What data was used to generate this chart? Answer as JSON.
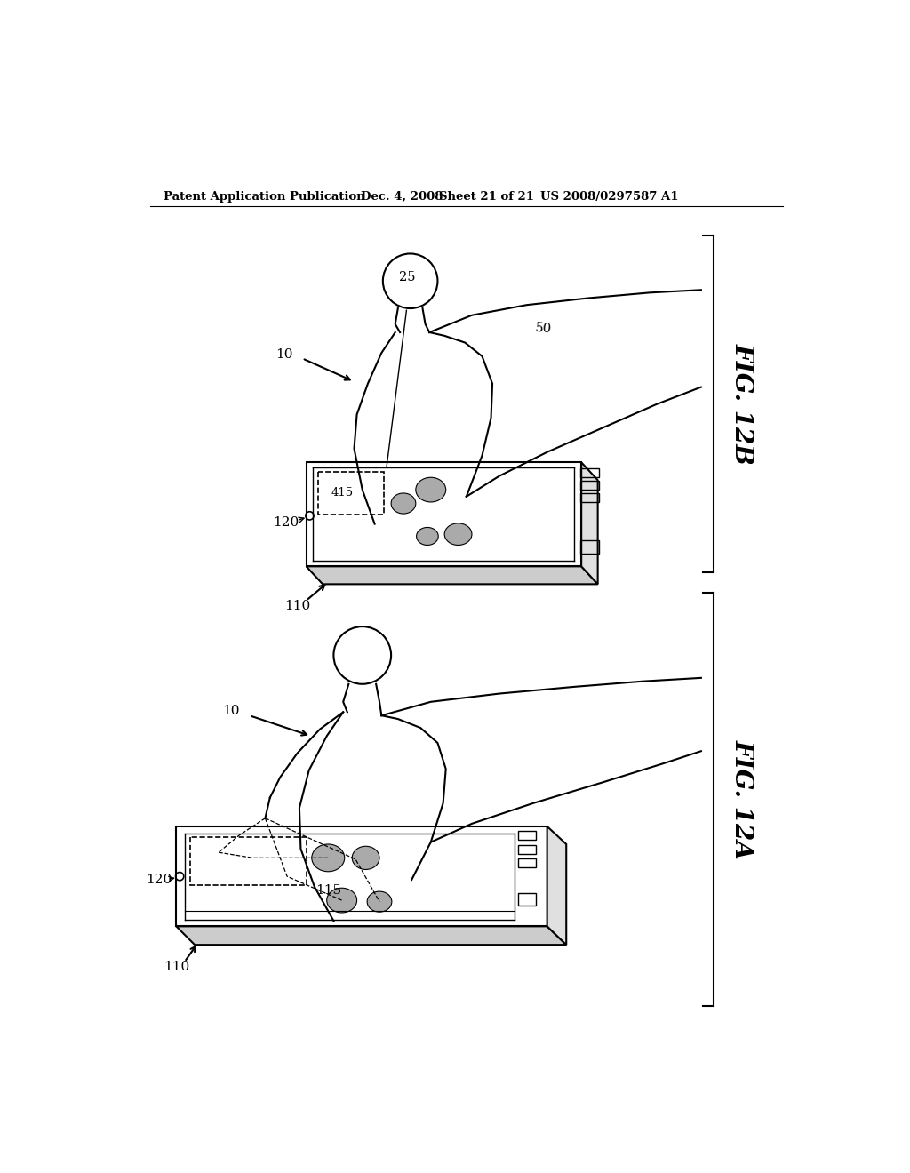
{
  "bg_color": "#ffffff",
  "header_text": "Patent Application Publication",
  "header_date": "Dec. 4, 2008",
  "header_sheet": "Sheet 21 of 21",
  "header_patent": "US 2008/0297587 A1",
  "fig_12b_label": "FIG. 12B",
  "fig_12a_label": "FIG. 12A",
  "label_10": "10",
  "label_25": "25",
  "label_50": "50",
  "label_110": "110",
  "label_120": "120",
  "label_115": "115",
  "label_415": "415"
}
